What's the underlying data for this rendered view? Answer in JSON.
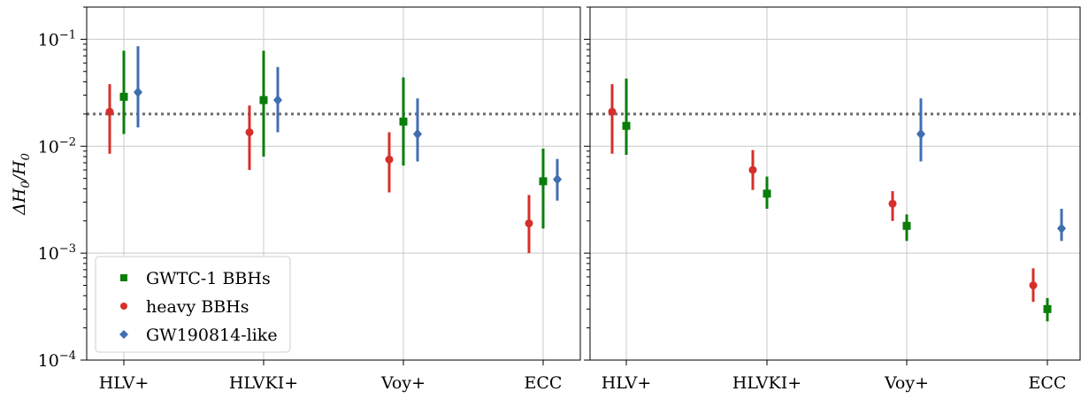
{
  "chart_data": [
    {
      "type": "scatter",
      "panel": "left",
      "categories": [
        "HLV+",
        "HLVKI+",
        "Voy+",
        "ECC"
      ],
      "ylabel": "ΔH_0/H_0",
      "yscale": "log",
      "ylim": [
        0.0001,
        0.2
      ],
      "yticks": [
        {
          "value": 0.1,
          "label": "10^-1"
        },
        {
          "value": 0.01,
          "label": "10^-2"
        },
        {
          "value": 0.001,
          "label": "10^-3"
        },
        {
          "value": 0.0001,
          "label": "10^-4"
        }
      ],
      "reference_line": {
        "value": 0.02,
        "style": "dotted",
        "color": "#6b6b6b"
      },
      "grid": true,
      "legend": {
        "placement": "lower-left",
        "entries": [
          {
            "label": "GWTC-1 BBHs",
            "marker": "square",
            "color": "#0a7d0a"
          },
          {
            "label": "heavy BBHs",
            "marker": "circle",
            "color": "#d62f2a"
          },
          {
            "label": "GW190814-like",
            "marker": "diamond",
            "color": "#3f6fb0"
          }
        ]
      },
      "series": [
        {
          "key": "heavy",
          "marker": "circle",
          "color": "#d62f2a",
          "offset": -1,
          "points": [
            {
              "category": "HLV+",
              "y": 0.021,
              "lo": 0.0085,
              "hi": 0.038
            },
            {
              "category": "HLVKI+",
              "y": 0.0135,
              "lo": 0.006,
              "hi": 0.024
            },
            {
              "category": "Voy+",
              "y": 0.0075,
              "lo": 0.0037,
              "hi": 0.0135
            },
            {
              "category": "ECC",
              "y": 0.0019,
              "lo": 0.001,
              "hi": 0.0035
            }
          ]
        },
        {
          "key": "gwtc1",
          "marker": "square",
          "color": "#0a7d0a",
          "offset": 0,
          "points": [
            {
              "category": "HLV+",
              "y": 0.029,
              "lo": 0.013,
              "hi": 0.078
            },
            {
              "category": "HLVKI+",
              "y": 0.027,
              "lo": 0.008,
              "hi": 0.078
            },
            {
              "category": "Voy+",
              "y": 0.017,
              "lo": 0.0066,
              "hi": 0.044
            },
            {
              "category": "ECC",
              "y": 0.0047,
              "lo": 0.0017,
              "hi": 0.0095
            }
          ]
        },
        {
          "key": "gw190814",
          "marker": "diamond",
          "color": "#3f6fb0",
          "offset": 1,
          "points": [
            {
              "category": "HLV+",
              "y": 0.032,
              "lo": 0.015,
              "hi": 0.086
            },
            {
              "category": "HLVKI+",
              "y": 0.027,
              "lo": 0.0135,
              "hi": 0.055
            },
            {
              "category": "Voy+",
              "y": 0.013,
              "lo": 0.0072,
              "hi": 0.028
            },
            {
              "category": "ECC",
              "y": 0.0049,
              "lo": 0.0031,
              "hi": 0.0076
            }
          ]
        }
      ]
    },
    {
      "type": "scatter",
      "panel": "right",
      "categories": [
        "HLV+",
        "HLVKI+",
        "Voy+",
        "ECC"
      ],
      "yscale": "log",
      "ylim": [
        0.0001,
        0.2
      ],
      "reference_line": {
        "value": 0.02,
        "style": "dotted",
        "color": "#6b6b6b"
      },
      "grid": true,
      "series": [
        {
          "key": "heavy",
          "marker": "circle",
          "color": "#d62f2a",
          "offset": -1,
          "points": [
            {
              "category": "HLV+",
              "y": 0.021,
              "lo": 0.0085,
              "hi": 0.038
            },
            {
              "category": "HLVKI+",
              "y": 0.006,
              "lo": 0.0039,
              "hi": 0.0092
            },
            {
              "category": "Voy+",
              "y": 0.0029,
              "lo": 0.002,
              "hi": 0.0038
            },
            {
              "category": "ECC",
              "y": 0.0005,
              "lo": 0.00035,
              "hi": 0.00072
            }
          ]
        },
        {
          "key": "gwtc1",
          "marker": "square",
          "color": "#0a7d0a",
          "offset": 0,
          "points": [
            {
              "category": "HLV+",
              "y": 0.0155,
              "lo": 0.0083,
              "hi": 0.043
            },
            {
              "category": "HLVKI+",
              "y": 0.0036,
              "lo": 0.0026,
              "hi": 0.0052
            },
            {
              "category": "Voy+",
              "y": 0.0018,
              "lo": 0.0013,
              "hi": 0.0023
            },
            {
              "category": "ECC",
              "y": 0.0003,
              "lo": 0.00023,
              "hi": 0.00038
            }
          ]
        },
        {
          "key": "gw190814",
          "marker": "diamond",
          "color": "#3f6fb0",
          "offset": 1,
          "points": [
            {
              "category": "Voy+",
              "y": 0.013,
              "lo": 0.0072,
              "hi": 0.028
            },
            {
              "category": "ECC",
              "y": 0.0017,
              "lo": 0.0013,
              "hi": 0.0026
            }
          ]
        }
      ]
    }
  ]
}
